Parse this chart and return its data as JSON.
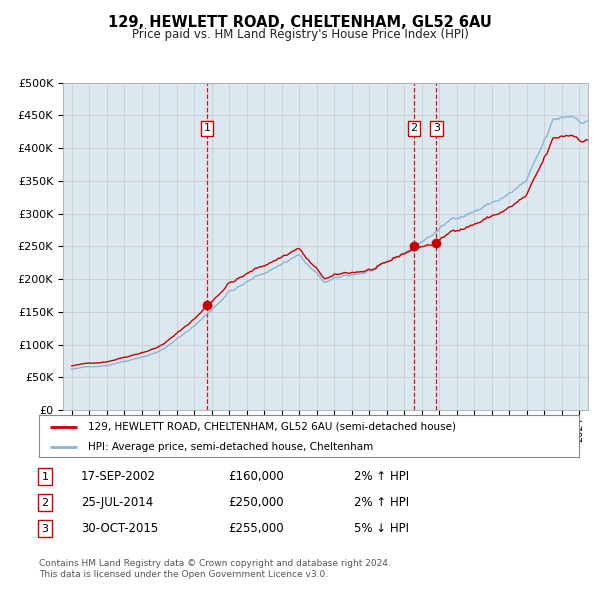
{
  "title": "129, HEWLETT ROAD, CHELTENHAM, GL52 6AU",
  "subtitle": "Price paid vs. HM Land Registry's House Price Index (HPI)",
  "xlim": [
    1994.5,
    2024.5
  ],
  "ylim": [
    0,
    500000
  ],
  "yticks": [
    0,
    50000,
    100000,
    150000,
    200000,
    250000,
    300000,
    350000,
    400000,
    450000,
    500000
  ],
  "ytick_labels": [
    "£0",
    "£50K",
    "£100K",
    "£150K",
    "£200K",
    "£250K",
    "£300K",
    "£350K",
    "£400K",
    "£450K",
    "£500K"
  ],
  "price_color": "#cc0000",
  "hpi_color": "#8ab4d4",
  "marker_color": "#cc0000",
  "vline_color": "#cc0000",
  "grid_color": "#cccccc",
  "background_color": "#ffffff",
  "plot_bg_color": "#dce8f0",
  "transactions": [
    {
      "label": "1",
      "date": 2002.72,
      "price": 160000,
      "pct": "2%",
      "dir": "↑",
      "date_str": "17-SEP-2002",
      "price_str": "£160,000"
    },
    {
      "label": "2",
      "date": 2014.56,
      "price": 250000,
      "pct": "2%",
      "dir": "↑",
      "date_str": "25-JUL-2014",
      "price_str": "£250,000"
    },
    {
      "label": "3",
      "date": 2015.83,
      "price": 255000,
      "pct": "5%",
      "dir": "↓",
      "date_str": "30-OCT-2015",
      "price_str": "£255,000"
    }
  ],
  "legend_line1": "129, HEWLETT ROAD, CHELTENHAM, GL52 6AU (semi-detached house)",
  "legend_line2": "HPI: Average price, semi-detached house, Cheltenham",
  "footer1": "Contains HM Land Registry data © Crown copyright and database right 2024.",
  "footer2": "This data is licensed under the Open Government Licence v3.0."
}
